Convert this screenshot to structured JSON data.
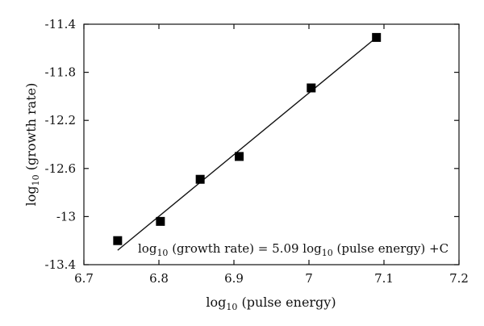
{
  "chart_data": {
    "type": "scatter",
    "xlim": [
      6.7,
      7.2
    ],
    "ylim": [
      -13.4,
      -11.4
    ],
    "x_ticks": [
      "6.7",
      "6.8",
      "6.9",
      "7",
      "7.1",
      "7.2"
    ],
    "y_ticks": [
      "-11.4",
      "-11.8",
      "-12.2",
      "-12.6",
      "-13",
      "-13.4"
    ],
    "xlabel": {
      "base": "log",
      "sub": "10",
      "rest": " (pulse energy)"
    },
    "ylabel": {
      "base": "log",
      "sub": "10",
      "rest": " (growth rate)"
    },
    "annotation": {
      "p1": "log",
      "s1": "10",
      "p2": " (growth rate) = 5.09 log",
      "s2": "10",
      "p3": " (pulse energy) +C"
    },
    "points": [
      {
        "x": 6.745,
        "y": -13.2
      },
      {
        "x": 6.802,
        "y": -13.04
      },
      {
        "x": 6.855,
        "y": -12.69
      },
      {
        "x": 6.907,
        "y": -12.5
      },
      {
        "x": 7.003,
        "y": -11.93
      },
      {
        "x": 7.09,
        "y": -11.51
      }
    ],
    "fit_line": {
      "x1": 6.745,
      "y1": -13.28,
      "x2": 7.09,
      "y2": -11.51
    },
    "grid": false,
    "legend": "none"
  }
}
